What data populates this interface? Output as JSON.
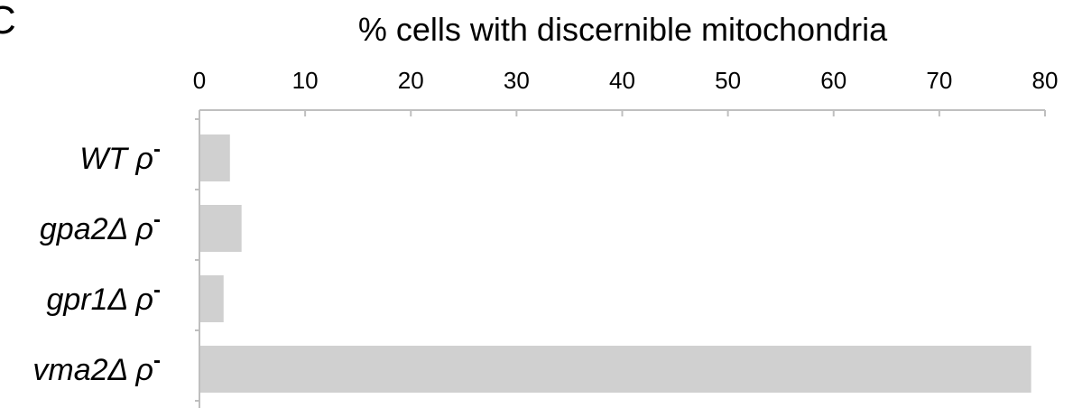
{
  "panel_label": "C",
  "chart_data": {
    "type": "bar",
    "orientation": "horizontal",
    "title": "% cells with discernible mitochondria",
    "xlabel": "",
    "ylabel": "",
    "xlim": [
      0,
      80
    ],
    "x_ticks": [
      0,
      10,
      20,
      30,
      40,
      50,
      60,
      70,
      80
    ],
    "axis_position": "top",
    "grid": false,
    "categories": [
      {
        "name": "WT",
        "suffix": "ρ",
        "sup": "-"
      },
      {
        "name": "gpa2Δ",
        "suffix": "ρ",
        "sup": "-"
      },
      {
        "name": "gpr1Δ",
        "suffix": "ρ",
        "sup": "-"
      },
      {
        "name": "vma2Δ",
        "suffix": "ρ",
        "sup": "-"
      }
    ],
    "values": [
      2.8,
      3.9,
      2.2,
      78.6
    ],
    "bar_color": "#d0d0d0",
    "axis_color": "#bfbfbf"
  }
}
